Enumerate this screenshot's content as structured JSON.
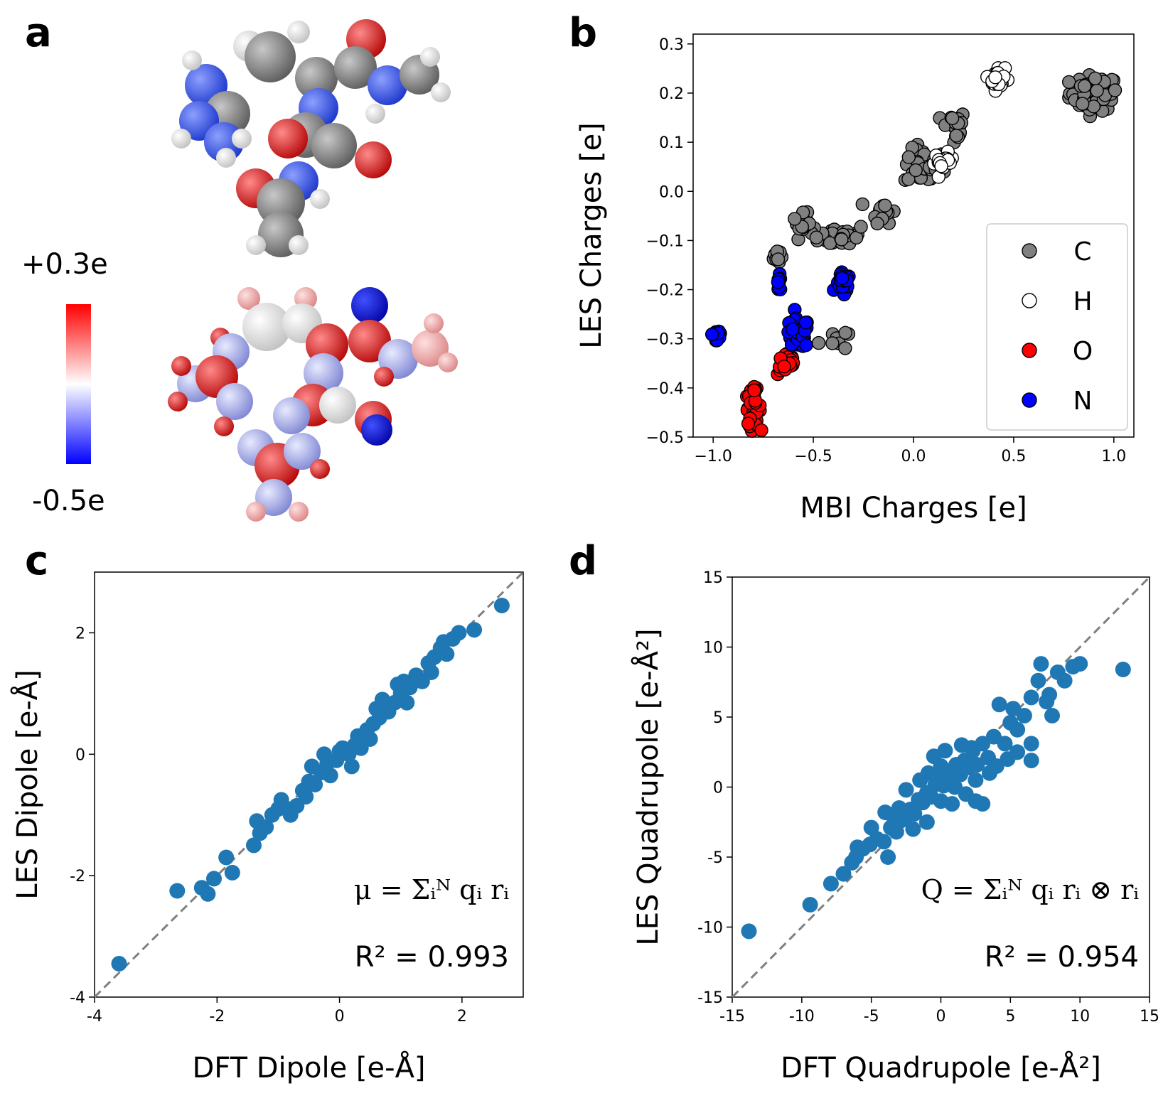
{
  "panel_labels": {
    "a": "a",
    "b": "b",
    "c": "c",
    "d": "d"
  },
  "molecule_panel": {
    "colorbar_max": "+0.3e",
    "colorbar_min": "-0.5e",
    "colorbar_colors": [
      "#0000ff",
      "#ffffff",
      "#ff0000"
    ],
    "atom_colors": {
      "C": "#808080",
      "H": "#ffffff",
      "O": "#ff0000",
      "N": "#2030ff"
    }
  },
  "chart_data": [
    {
      "id": "b",
      "type": "scatter",
      "title": "",
      "xlabel": "MBI Charges [e]",
      "ylabel": "LES Charges [e]",
      "xlim": [
        -1.1,
        1.1
      ],
      "ylim": [
        -0.5,
        0.32
      ],
      "xticks": [
        -1.0,
        -0.5,
        0.0,
        0.5,
        1.0
      ],
      "yticks": [
        -0.5,
        -0.4,
        -0.3,
        -0.2,
        -0.1,
        0.0,
        0.1,
        0.2,
        0.3
      ],
      "xtick_labels": [
        "−1.0",
        "−0.5",
        "0.0",
        "0.5",
        "1.0"
      ],
      "ytick_labels": [
        "−0.5",
        "−0.4",
        "−0.3",
        "−0.2",
        "−0.1",
        "0.0",
        "0.1",
        "0.2",
        "0.3"
      ],
      "legend_position": "lower-right",
      "series": [
        {
          "name": "C",
          "color": "#808080",
          "clusters": [
            {
              "x": 0.9,
              "y": 0.2,
              "n": 70,
              "sx": 0.1,
              "sy": 0.03
            },
            {
              "x": 0.05,
              "y": 0.05,
              "n": 50,
              "sx": 0.08,
              "sy": 0.03
            },
            {
              "x": 0.2,
              "y": 0.13,
              "n": 20,
              "sx": 0.05,
              "sy": 0.03
            },
            {
              "x": -0.35,
              "y": -0.09,
              "n": 30,
              "sx": 0.1,
              "sy": 0.02
            },
            {
              "x": -0.15,
              "y": -0.04,
              "n": 15,
              "sx": 0.05,
              "sy": 0.02
            },
            {
              "x": -0.55,
              "y": -0.07,
              "n": 20,
              "sx": 0.04,
              "sy": 0.02
            },
            {
              "x": -0.68,
              "y": -0.13,
              "n": 10,
              "sx": 0.02,
              "sy": 0.015
            },
            {
              "x": -0.4,
              "y": -0.3,
              "n": 8,
              "sx": 0.06,
              "sy": 0.02
            }
          ]
        },
        {
          "name": "H",
          "color": "#ffffff",
          "clusters": [
            {
              "x": 0.42,
              "y": 0.23,
              "n": 30,
              "sx": 0.03,
              "sy": 0.02
            },
            {
              "x": 0.15,
              "y": 0.06,
              "n": 25,
              "sx": 0.04,
              "sy": 0.015
            }
          ]
        },
        {
          "name": "O",
          "color": "#ff0000",
          "clusters": [
            {
              "x": -0.8,
              "y": -0.44,
              "n": 45,
              "sx": 0.03,
              "sy": 0.03
            },
            {
              "x": -0.63,
              "y": -0.35,
              "n": 25,
              "sx": 0.04,
              "sy": 0.02
            }
          ]
        },
        {
          "name": "N",
          "color": "#0000ff",
          "clusters": [
            {
              "x": -0.98,
              "y": -0.29,
              "n": 12,
              "sx": 0.02,
              "sy": 0.02
            },
            {
              "x": -0.58,
              "y": -0.29,
              "n": 55,
              "sx": 0.05,
              "sy": 0.025
            },
            {
              "x": -0.35,
              "y": -0.19,
              "n": 20,
              "sx": 0.03,
              "sy": 0.02
            },
            {
              "x": -0.67,
              "y": -0.19,
              "n": 8,
              "sx": 0.01,
              "sy": 0.015
            }
          ]
        }
      ]
    },
    {
      "id": "c",
      "type": "scatter",
      "title": "",
      "xlabel": "DFT Dipole [e-Å]",
      "ylabel": "LES Dipole [e-Å]",
      "xlim": [
        -4,
        3
      ],
      "ylim": [
        -4,
        3
      ],
      "xticks": [
        -4,
        -2,
        0,
        2
      ],
      "yticks": [
        -4,
        -2,
        0,
        2
      ],
      "xtick_labels": [
        "-4",
        "-2",
        "0",
        "2"
      ],
      "ytick_labels": [
        "-4",
        "-2",
        "0",
        "2"
      ],
      "color": "#1f77b4",
      "formula": "μ = Σᵢᴺ qᵢ rᵢ",
      "r2_label": "R² = 0.993",
      "points": [
        [
          -3.6,
          -3.45
        ],
        [
          -2.65,
          -2.25
        ],
        [
          -2.25,
          -2.2
        ],
        [
          -2.15,
          -2.3
        ],
        [
          -2.05,
          -2.05
        ],
        [
          -1.85,
          -1.7
        ],
        [
          -1.75,
          -1.95
        ],
        [
          -1.4,
          -1.5
        ],
        [
          -1.35,
          -1.1
        ],
        [
          -1.2,
          -1.2
        ],
        [
          -1.1,
          -1.0
        ],
        [
          -1.0,
          -0.9
        ],
        [
          -0.95,
          -0.75
        ],
        [
          -0.85,
          -0.9
        ],
        [
          -0.7,
          -0.85
        ],
        [
          -0.6,
          -0.6
        ],
        [
          -0.5,
          -0.45
        ],
        [
          -0.4,
          -0.5
        ],
        [
          -0.3,
          -0.3
        ],
        [
          -0.2,
          -0.15
        ],
        [
          -0.15,
          -0.35
        ],
        [
          -0.05,
          -0.1
        ],
        [
          0.05,
          0.1
        ],
        [
          0.15,
          0.0
        ],
        [
          0.2,
          -0.2
        ],
        [
          0.3,
          0.3
        ],
        [
          0.35,
          0.1
        ],
        [
          0.45,
          0.4
        ],
        [
          0.55,
          0.5
        ],
        [
          0.65,
          0.6
        ],
        [
          0.7,
          0.9
        ],
        [
          0.8,
          0.7
        ],
        [
          0.9,
          0.85
        ],
        [
          1.0,
          1.0
        ],
        [
          1.05,
          1.2
        ],
        [
          1.15,
          1.1
        ],
        [
          1.25,
          1.3
        ],
        [
          1.35,
          1.2
        ],
        [
          1.45,
          1.5
        ],
        [
          1.5,
          1.35
        ],
        [
          1.55,
          1.6
        ],
        [
          1.65,
          1.75
        ],
        [
          1.7,
          1.85
        ],
        [
          1.85,
          1.9
        ],
        [
          1.95,
          2.0
        ],
        [
          2.2,
          2.05
        ],
        [
          2.65,
          2.45
        ],
        [
          -0.8,
          -1.0
        ],
        [
          0.0,
          0.05
        ],
        [
          -0.25,
          0.0
        ],
        [
          0.5,
          0.25
        ],
        [
          1.1,
          0.85
        ],
        [
          0.6,
          0.75
        ],
        [
          -1.3,
          -1.3
        ],
        [
          -0.45,
          -0.2
        ],
        [
          1.75,
          1.65
        ],
        [
          0.95,
          1.15
        ],
        [
          0.25,
          0.15
        ],
        [
          -0.55,
          -0.7
        ]
      ]
    },
    {
      "id": "d",
      "type": "scatter",
      "title": "",
      "xlabel": "DFT Quadrupole [e-Å²]",
      "ylabel": "LES Quadrupole [e-Å²]",
      "xlim": [
        -15,
        15
      ],
      "ylim": [
        -15,
        15
      ],
      "xticks": [
        -15,
        -10,
        -5,
        0,
        5,
        10,
        15
      ],
      "yticks": [
        -15,
        -10,
        -5,
        0,
        5,
        10,
        15
      ],
      "xtick_labels": [
        "-15",
        "-10",
        "-5",
        "0",
        "5",
        "10",
        "15"
      ],
      "ytick_labels": [
        "-15",
        "-10",
        "-5",
        "0",
        "5",
        "10",
        "15"
      ],
      "color": "#1f77b4",
      "formula": "Q = Σᵢᴺ qᵢ rᵢ ⊗ rᵢ",
      "r2_label": "R² = 0.954",
      "points": [
        [
          -13.8,
          -10.3
        ],
        [
          -9.4,
          -8.4
        ],
        [
          -7.9,
          -6.9
        ],
        [
          -7.0,
          -6.2
        ],
        [
          -6.4,
          -5.4
        ],
        [
          -6.1,
          -5.0
        ],
        [
          -5.6,
          -4.4
        ],
        [
          -5.1,
          -4.1
        ],
        [
          -4.6,
          -3.7
        ],
        [
          -4.1,
          -3.9
        ],
        [
          -3.6,
          -2.9
        ],
        [
          -3.2,
          -3.2
        ],
        [
          -2.9,
          -2.4
        ],
        [
          -2.5,
          -2.1
        ],
        [
          -2.2,
          -1.6
        ],
        [
          -1.9,
          -1.9
        ],
        [
          -1.6,
          -0.9
        ],
        [
          -1.3,
          -1.1
        ],
        [
          -1.0,
          -0.4
        ],
        [
          -0.7,
          -0.7
        ],
        [
          -0.4,
          0.2
        ],
        [
          -0.1,
          0.6
        ],
        [
          0.2,
          0.1
        ],
        [
          0.5,
          1.1
        ],
        [
          0.8,
          0.4
        ],
        [
          1.1,
          1.6
        ],
        [
          1.4,
          0.9
        ],
        [
          1.7,
          1.9
        ],
        [
          2.0,
          1.4
        ],
        [
          2.3,
          2.6
        ],
        [
          2.6,
          1.6
        ],
        [
          3.0,
          3.1
        ],
        [
          3.4,
          2.1
        ],
        [
          3.8,
          3.6
        ],
        [
          4.2,
          5.9
        ],
        [
          4.6,
          3.1
        ],
        [
          5.0,
          4.6
        ],
        [
          5.5,
          4.1
        ],
        [
          6.0,
          5.1
        ],
        [
          6.5,
          6.4
        ],
        [
          7.0,
          7.6
        ],
        [
          7.2,
          8.8
        ],
        [
          7.6,
          6.1
        ],
        [
          8.0,
          5.1
        ],
        [
          8.4,
          8.2
        ],
        [
          8.9,
          7.6
        ],
        [
          9.5,
          8.6
        ],
        [
          10.0,
          8.8
        ],
        [
          13.1,
          8.4
        ],
        [
          -3.0,
          -1.5
        ],
        [
          -2.0,
          -3.0
        ],
        [
          0.0,
          -1.0
        ],
        [
          1.0,
          0.0
        ],
        [
          2.5,
          0.5
        ],
        [
          3.5,
          1.0
        ],
        [
          2.5,
          -1.0
        ],
        [
          -1.0,
          -2.5
        ],
        [
          0.0,
          1.5
        ],
        [
          -5.0,
          -2.9
        ],
        [
          -4.0,
          -1.8
        ],
        [
          1.5,
          3.0
        ],
        [
          5.5,
          2.5
        ],
        [
          6.5,
          3.1
        ],
        [
          -0.5,
          2.2
        ],
        [
          -2.5,
          -0.2
        ],
        [
          4.0,
          1.5
        ],
        [
          -6.0,
          -4.3
        ],
        [
          -3.8,
          -5.0
        ],
        [
          6.5,
          1.9
        ],
        [
          3.0,
          -1.2
        ],
        [
          0.8,
          -1.2
        ],
        [
          -1.5,
          0.5
        ],
        [
          2.2,
          2.8
        ],
        [
          5.2,
          5.6
        ],
        [
          -0.9,
          1.0
        ],
        [
          1.8,
          -0.5
        ],
        [
          -3.5,
          -2.0
        ],
        [
          7.8,
          6.6
        ],
        [
          4.8,
          2.0
        ],
        [
          0.3,
          2.6
        ]
      ]
    }
  ]
}
